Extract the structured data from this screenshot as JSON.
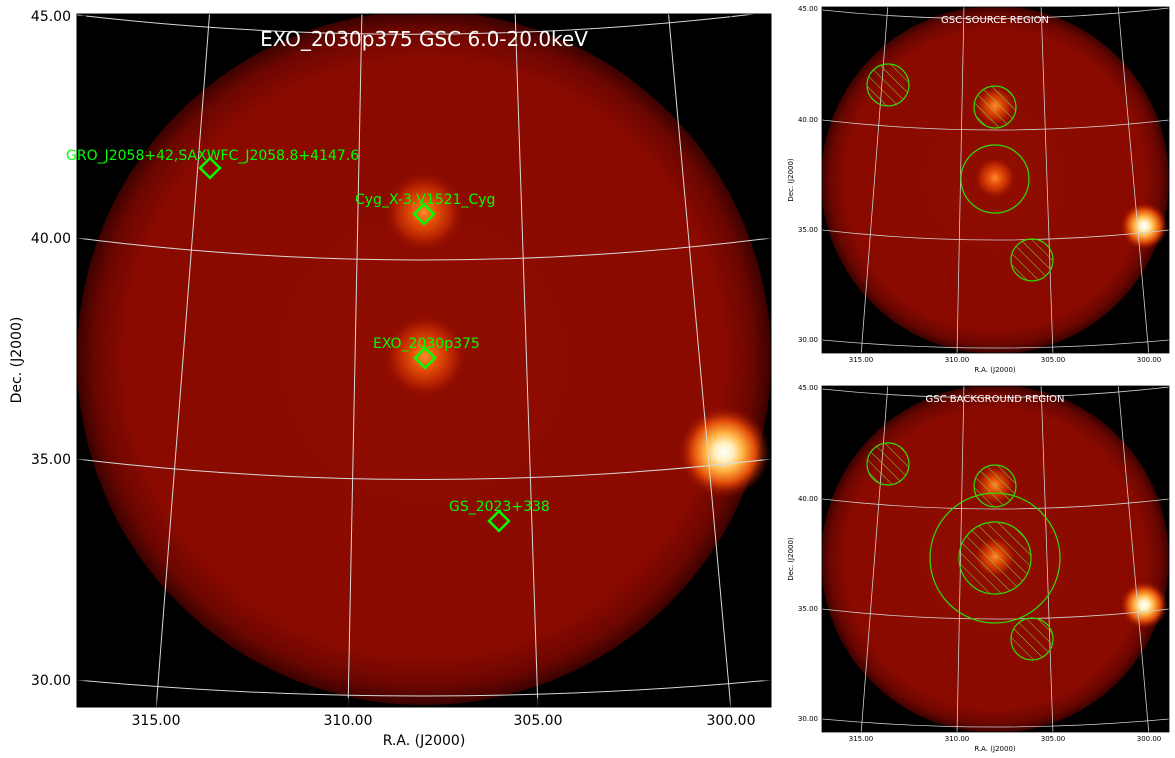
{
  "main_panel": {
    "title": "EXO_2030p375 GSC 6.0-20.0keV",
    "xlabel": "R.A. (J2000)",
    "ylabel": "Dec. (J2000)",
    "x_ticks": [
      "315.00",
      "310.00",
      "305.00",
      "300.00"
    ],
    "y_ticks": [
      "45.00",
      "40.00",
      "35.00",
      "30.00"
    ],
    "sources": [
      {
        "label": "GRO_J2058+42,SAXWFC_J2058.8+4147.6"
      },
      {
        "label": "Cyg_X-3,V1521_Cyg"
      },
      {
        "label": "EXO_2030p375"
      },
      {
        "label": "GS_2023+338"
      }
    ],
    "marker_color": "#00ff00",
    "title_color": "#ffffff"
  },
  "source_panel": {
    "title": "GSC SOURCE REGION",
    "xlabel": "R.A. (J2000)",
    "ylabel": "Dec. (J2000)",
    "x_ticks": [
      "315.00",
      "310.00",
      "305.00",
      "300.00"
    ],
    "y_ticks": [
      "45.00",
      "40.00",
      "35.00",
      "30.00"
    ]
  },
  "background_panel": {
    "title": "GSC BACKGROUND REGION",
    "xlabel": "R.A. (J2000)",
    "ylabel": "Dec. (J2000)",
    "x_ticks": [
      "315.00",
      "310.00",
      "305.00",
      "300.00"
    ],
    "y_ticks": [
      "45.00",
      "40.00",
      "35.00",
      "30.00"
    ]
  },
  "colors": {
    "sky_dark": "#000000",
    "disk_red": "#8b0a00",
    "source_hot": "#ffffff",
    "region_green": "#33dd00",
    "grid": "#cfcfcf"
  }
}
